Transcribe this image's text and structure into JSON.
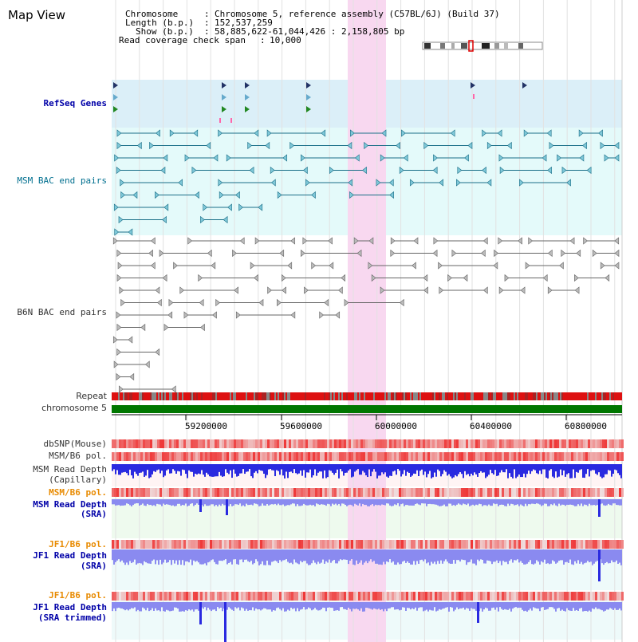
{
  "header": {
    "title": "Map View",
    "chromosome_label": "Chromosome",
    "chromosome_value": "Chromosome 5, reference assembly (C57BL/6J) (Build 37)",
    "length_label": "Length (b.p.)",
    "length_value": "152,537,259",
    "show_label": "Show (b.p.)",
    "show_value": "58,885,622-61,044,426 : 2,158,805 bp",
    "coverage_label": "Read coverage check span",
    "coverage_value": "10,000"
  },
  "tracks": {
    "refseq": "RefSeq Genes",
    "msm_bac": "MSM BAC end pairs",
    "b6n_bac": "B6N BAC end pairs",
    "repeat": "Repeat",
    "chromosome": "chromosome 5",
    "dbsnp": "dbSNP(Mouse)",
    "msm_b6_pol": "MSM/B6 pol.",
    "msm_depth_cap_1": "MSM Read Depth",
    "msm_depth_cap_2": "(Capillary)",
    "msm_b6_pol2": "MSM/B6 pol.",
    "msm_depth_sra_1": "MSM Read Depth",
    "msm_depth_sra_2": "(SRA)",
    "jf1_b6_pol": "JF1/B6 pol.",
    "jf1_depth_sra_1": "JF1 Read Depth",
    "jf1_depth_sra_2": "(SRA)",
    "jf1_b6_pol2": "JF1/B6 pol.",
    "jf1_depth_trim_1": "JF1 Read Depth",
    "jf1_depth_trim_2": "(SRA trimmed)"
  },
  "axis": {
    "ticks": [
      "59200000",
      "59600000",
      "60000000",
      "60400000",
      "60800000"
    ]
  },
  "colors": {
    "refseq_bg": "#dbeff8",
    "bac_bg": "#e4fafa",
    "highlight": "#f8d8f0",
    "chromosome_bar": "#007700",
    "snp": "#ef3b3b",
    "depth_blue": "#2a2ae0",
    "depth_light": "#8a8af0"
  }
}
